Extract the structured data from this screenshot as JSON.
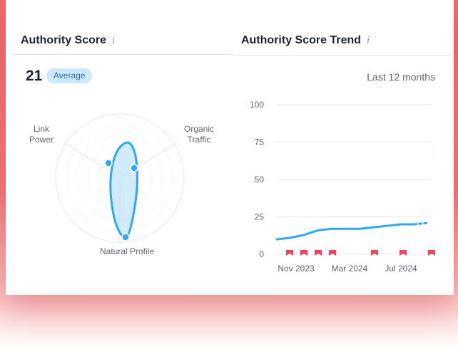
{
  "authority_score": {
    "title": "Authority Score",
    "info_icon": "i",
    "score": "21",
    "badge": "Average",
    "radar": {
      "labels": {
        "link_power": "Link\nPower",
        "organic_traffic": "Organic\nTraffic",
        "natural_profile": "Natural Profile"
      }
    }
  },
  "trend": {
    "title": "Authority Score Trend",
    "info_icon": "i",
    "range_label": "Last 12 months"
  },
  "colors": {
    "accent": "#2ea9f0",
    "flag": "#f0445a",
    "badge_bg": "#cfe8fb"
  },
  "chart_data": {
    "type": "line",
    "title": "Authority Score Trend",
    "xlabel": "",
    "ylabel": "",
    "ylim": [
      0,
      100
    ],
    "yticks": [
      "100",
      "75",
      "50",
      "25",
      "0"
    ],
    "xticks": [
      "Nov 2023",
      "Mar 2024",
      "Jul 2024"
    ],
    "grid": true,
    "series": [
      {
        "values": [
          10,
          11,
          13,
          16,
          17,
          17,
          17,
          18,
          19,
          20,
          20,
          21
        ]
      }
    ],
    "flags": 7
  }
}
